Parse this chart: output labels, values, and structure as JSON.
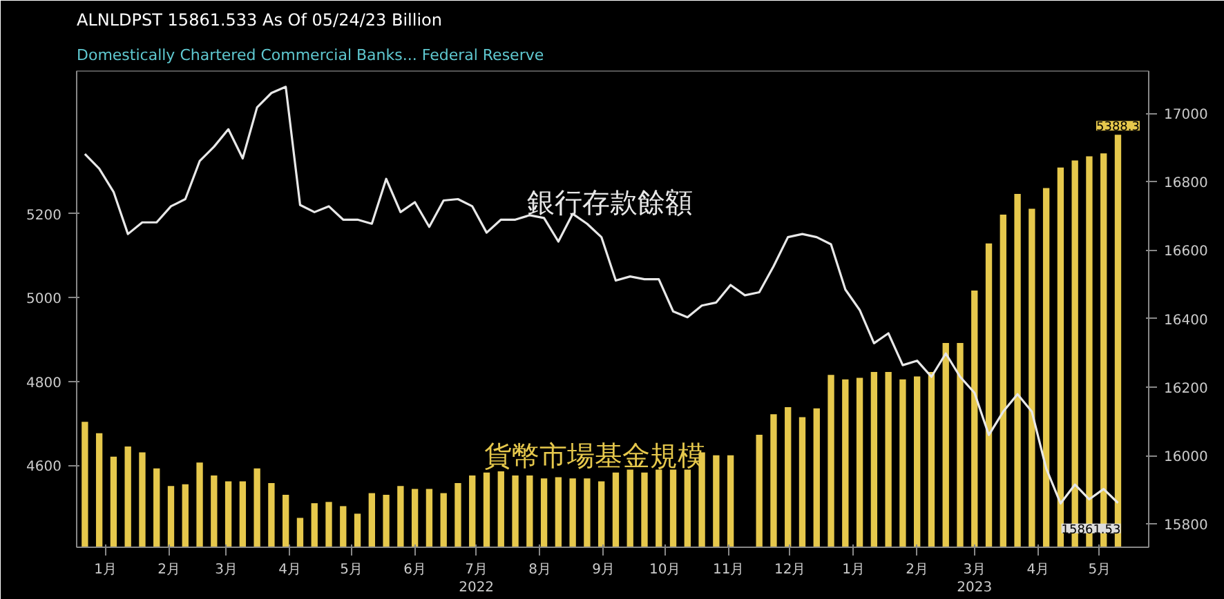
{
  "chart_data": {
    "type": "bar",
    "title": "ALNLDPST   15861.533   As Of 05/24/23   Billion",
    "subtitle": "Domestically Chartered Commercial Banks...   Federal Reserve",
    "x": [
      "2022-01-05",
      "2022-01-12",
      "2022-01-19",
      "2022-01-26",
      "2022-02-02",
      "2022-02-09",
      "2022-02-16",
      "2022-02-23",
      "2022-03-02",
      "2022-03-09",
      "2022-03-16",
      "2022-03-23",
      "2022-03-30",
      "2022-04-06",
      "2022-04-13",
      "2022-04-20",
      "2022-04-27",
      "2022-05-04",
      "2022-05-11",
      "2022-05-18",
      "2022-05-25",
      "2022-06-01",
      "2022-06-08",
      "2022-06-15",
      "2022-06-22",
      "2022-06-29",
      "2022-07-06",
      "2022-07-13",
      "2022-07-20",
      "2022-07-27",
      "2022-08-03",
      "2022-08-10",
      "2022-08-17",
      "2022-08-24",
      "2022-08-31",
      "2022-09-07",
      "2022-09-14",
      "2022-09-21",
      "2022-09-28",
      "2022-10-05",
      "2022-10-12",
      "2022-10-19",
      "2022-10-26",
      "2022-11-02",
      "2022-11-09",
      "2022-11-16",
      "2022-11-23",
      "2022-11-30",
      "2022-12-07",
      "2022-12-14",
      "2022-12-21",
      "2022-12-28",
      "2023-01-04",
      "2023-01-11",
      "2023-01-18",
      "2023-01-25",
      "2023-02-01",
      "2023-02-08",
      "2023-02-15",
      "2023-02-22",
      "2023-03-01",
      "2023-03-08",
      "2023-03-15",
      "2023-03-22",
      "2023-03-29",
      "2023-04-05",
      "2023-04-12",
      "2023-04-19",
      "2023-04-26",
      "2023-05-03",
      "2023-05-10",
      "2023-05-17",
      "2023-05-24"
    ],
    "xlim": [
      "2022-01-01",
      "2023-06-08"
    ],
    "xticks": [
      {
        "value": "2022-01-15",
        "label": "1月"
      },
      {
        "value": "2022-02-15",
        "label": "2月"
      },
      {
        "value": "2022-03-15",
        "label": "3月"
      },
      {
        "value": "2022-04-15",
        "label": "4月"
      },
      {
        "value": "2022-05-15",
        "label": "5月"
      },
      {
        "value": "2022-06-15",
        "label": "6月"
      },
      {
        "value": "2022-07-15",
        "label": "7月\n2022"
      },
      {
        "value": "2022-08-15",
        "label": "8月"
      },
      {
        "value": "2022-09-15",
        "label": "9月"
      },
      {
        "value": "2022-10-15",
        "label": "10月"
      },
      {
        "value": "2022-11-15",
        "label": "11月"
      },
      {
        "value": "2022-12-15",
        "label": "12月"
      },
      {
        "value": "2023-01-15",
        "label": "1月"
      },
      {
        "value": "2023-02-15",
        "label": "2月"
      },
      {
        "value": "2023-03-15",
        "label": "3月\n2023"
      },
      {
        "value": "2023-04-15",
        "label": "4月"
      },
      {
        "value": "2023-05-15",
        "label": "5月"
      }
    ],
    "ylim": [
      4405,
      5540
    ],
    "yticks": [
      4600,
      4800,
      5000,
      5200
    ],
    "y2lim": [
      15732,
      17123
    ],
    "y2ticks": [
      15800,
      16000,
      16200,
      16400,
      16600,
      16800,
      17000
    ],
    "grid": false,
    "legend": false,
    "series": [
      {
        "name": "貨幣市場基金規模",
        "color": "#e6c84c",
        "values": [
          4704,
          4677,
          4621,
          4645,
          4631,
          4593,
          4551,
          4555,
          4607,
          4576,
          4562,
          4562,
          4593,
          4558,
          4530,
          4475,
          4510,
          4513,
          4503,
          4485,
          4534,
          4530,
          4551,
          4544,
          4544,
          4534,
          4558,
          4576,
          4583,
          4586,
          4576,
          4576,
          4569,
          4572,
          4569,
          4569,
          4562,
          4583,
          4590,
          4583,
          4590,
          4590,
          4590,
          4631,
          4624,
          4624,
          null,
          4673,
          4722,
          4739,
          4715,
          4736,
          4816,
          4805,
          4809,
          4823,
          4823,
          4805,
          4812,
          4823,
          4892,
          4892,
          5017,
          5129,
          5198,
          5247,
          5212,
          5261,
          5310,
          5327,
          5337,
          5344,
          5388.3
        ],
        "value_labels": [
          null,
          null,
          null,
          null,
          null,
          null,
          null,
          null,
          null,
          null,
          null,
          null,
          null,
          null,
          null,
          null,
          null,
          null,
          null,
          null,
          null,
          null,
          null,
          null,
          null,
          null,
          null,
          null,
          null,
          null,
          null,
          null,
          null,
          null,
          null,
          null,
          null,
          null,
          null,
          null,
          null,
          null,
          null,
          null,
          null,
          null,
          null,
          null,
          null,
          null,
          null,
          null,
          null,
          null,
          null,
          null,
          null,
          null,
          null,
          null,
          null,
          null,
          null,
          null,
          null,
          null,
          null,
          null,
          null,
          null,
          null,
          null,
          "5388.3"
        ]
      },
      {
        "name": "銀行存款餘額",
        "type": "line",
        "axis": "y2",
        "color": "#e8e8e8",
        "values": [
          16881,
          16838,
          16770,
          16647,
          16681,
          16681,
          16728,
          16749,
          16860,
          16902,
          16953,
          16868,
          17017,
          17059,
          17077,
          16732,
          16711,
          16728,
          16689,
          16689,
          16677,
          16808,
          16711,
          16740,
          16668,
          16745,
          16749,
          16728,
          16651,
          16689,
          16689,
          16702,
          16694,
          16625,
          16706,
          16677,
          16638,
          16511,
          16523,
          16515,
          16515,
          16421,
          16404,
          16438,
          16447,
          16498,
          16468,
          16477,
          16553,
          16638,
          16647,
          16638,
          16617,
          16485,
          16425,
          16328,
          16357,
          16264,
          16277,
          16230,
          16298,
          16230,
          16183,
          16060,
          16128,
          16179,
          16128,
          15962,
          15860,
          15915,
          15872,
          15902,
          15861.533
        ],
        "value_labels": [
          null,
          null,
          null,
          null,
          null,
          null,
          null,
          null,
          null,
          null,
          null,
          null,
          null,
          null,
          null,
          null,
          null,
          null,
          null,
          null,
          null,
          null,
          null,
          null,
          null,
          null,
          null,
          null,
          null,
          null,
          null,
          null,
          null,
          null,
          null,
          null,
          null,
          null,
          null,
          null,
          null,
          null,
          null,
          null,
          null,
          null,
          null,
          null,
          null,
          null,
          null,
          null,
          null,
          null,
          null,
          null,
          null,
          null,
          null,
          null,
          null,
          null,
          null,
          null,
          null,
          null,
          null,
          null,
          null,
          null,
          null,
          null,
          "15861.53"
        ]
      }
    ]
  }
}
